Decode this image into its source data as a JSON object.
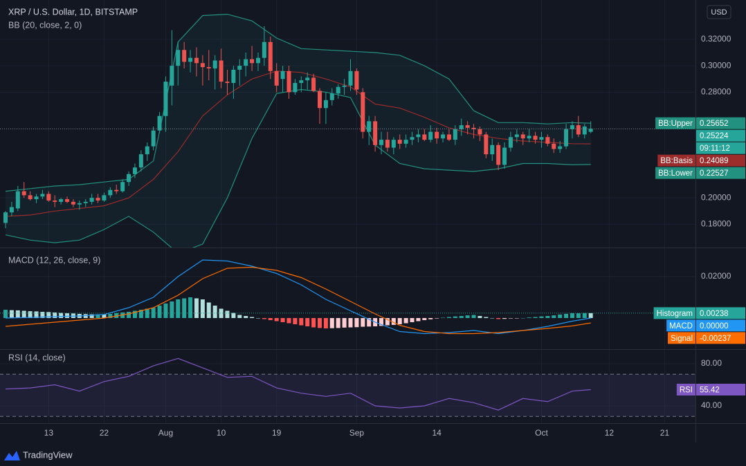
{
  "chart_data": [
    {
      "type": "candlestick",
      "title": "XRP / U.S. Dollar, 1D, BITSTAMP",
      "subtitle": "BB (20, close, 2, 0)",
      "currency": "USD",
      "countdown": "09:11:12",
      "up_color": "#26a69a",
      "down_color": "#ef5350",
      "band_fill": "rgba(38,166,154,0.07)",
      "x": [
        0,
        1,
        2,
        3,
        4,
        5,
        6,
        7,
        8,
        9,
        10,
        11,
        12,
        13,
        14,
        15,
        16,
        17,
        18,
        19,
        20,
        21,
        22,
        23,
        24,
        25,
        26,
        27,
        28,
        29,
        30,
        31,
        32,
        33,
        34,
        35,
        36,
        37,
        38,
        39,
        40,
        41,
        42,
        43,
        44,
        45,
        46,
        47,
        48,
        49,
        50,
        51,
        52,
        53,
        54,
        55,
        56,
        57,
        58,
        59,
        60,
        61,
        62,
        63,
        64,
        65,
        66,
        67,
        68,
        69,
        70,
        71,
        72,
        73,
        74,
        75,
        76,
        77,
        78,
        79,
        80,
        81,
        82,
        83,
        84,
        85,
        86,
        87,
        88,
        89,
        90,
        91,
        92,
        93,
        94,
        95
      ],
      "open": [
        0.181,
        0.189,
        0.192,
        0.205,
        0.202,
        0.199,
        0.201,
        0.203,
        0.198,
        0.197,
        0.199,
        0.197,
        0.195,
        0.196,
        0.197,
        0.2,
        0.198,
        0.202,
        0.206,
        0.205,
        0.212,
        0.218,
        0.223,
        0.233,
        0.239,
        0.251,
        0.262,
        0.285,
        0.3,
        0.312,
        0.303,
        0.306,
        0.302,
        0.299,
        0.298,
        0.304,
        0.288,
        0.287,
        0.297,
        0.3,
        0.305,
        0.302,
        0.306,
        0.318,
        0.296,
        0.29,
        0.296,
        0.28,
        0.287,
        0.289,
        0.291,
        0.281,
        0.268,
        0.274,
        0.279,
        0.284,
        0.285,
        0.296,
        0.28,
        0.25,
        0.258,
        0.24,
        0.244,
        0.238,
        0.244,
        0.241,
        0.244,
        0.246,
        0.248,
        0.244,
        0.25,
        0.245,
        0.248,
        0.244,
        0.252,
        0.255,
        0.253,
        0.252,
        0.248,
        0.233,
        0.24,
        0.225,
        0.238,
        0.246,
        0.248,
        0.245,
        0.247,
        0.244,
        0.246,
        0.241,
        0.237,
        0.239,
        0.252,
        0.255,
        0.248,
        0.25
      ],
      "high": [
        0.19,
        0.197,
        0.209,
        0.212,
        0.205,
        0.203,
        0.206,
        0.205,
        0.202,
        0.2,
        0.201,
        0.199,
        0.198,
        0.199,
        0.203,
        0.203,
        0.204,
        0.208,
        0.21,
        0.214,
        0.22,
        0.226,
        0.236,
        0.242,
        0.254,
        0.265,
        0.292,
        0.327,
        0.318,
        0.318,
        0.312,
        0.314,
        0.308,
        0.312,
        0.308,
        0.313,
        0.297,
        0.3,
        0.305,
        0.31,
        0.315,
        0.31,
        0.33,
        0.322,
        0.302,
        0.3,
        0.3,
        0.29,
        0.292,
        0.295,
        0.294,
        0.283,
        0.28,
        0.283,
        0.286,
        0.29,
        0.305,
        0.298,
        0.283,
        0.262,
        0.262,
        0.25,
        0.25,
        0.246,
        0.248,
        0.248,
        0.25,
        0.252,
        0.252,
        0.255,
        0.253,
        0.25,
        0.252,
        0.255,
        0.26,
        0.258,
        0.256,
        0.254,
        0.25,
        0.245,
        0.242,
        0.242,
        0.25,
        0.252,
        0.25,
        0.252,
        0.25,
        0.25,
        0.248,
        0.245,
        0.243,
        0.256,
        0.258,
        0.262,
        0.256,
        0.258
      ],
      "low": [
        0.177,
        0.186,
        0.19,
        0.2,
        0.198,
        0.196,
        0.199,
        0.197,
        0.193,
        0.195,
        0.196,
        0.193,
        0.191,
        0.193,
        0.195,
        0.196,
        0.197,
        0.2,
        0.203,
        0.204,
        0.209,
        0.215,
        0.22,
        0.228,
        0.236,
        0.249,
        0.25,
        0.27,
        0.285,
        0.298,
        0.295,
        0.292,
        0.285,
        0.289,
        0.282,
        0.283,
        0.278,
        0.275,
        0.285,
        0.292,
        0.296,
        0.296,
        0.3,
        0.29,
        0.28,
        0.28,
        0.275,
        0.278,
        0.28,
        0.282,
        0.28,
        0.256,
        0.256,
        0.27,
        0.275,
        0.278,
        0.281,
        0.278,
        0.245,
        0.24,
        0.235,
        0.233,
        0.235,
        0.233,
        0.237,
        0.238,
        0.24,
        0.242,
        0.243,
        0.242,
        0.241,
        0.242,
        0.243,
        0.24,
        0.247,
        0.248,
        0.245,
        0.243,
        0.23,
        0.228,
        0.221,
        0.222,
        0.235,
        0.242,
        0.24,
        0.242,
        0.241,
        0.238,
        0.239,
        0.234,
        0.234,
        0.237,
        0.245,
        0.246,
        0.245,
        0.249
      ],
      "close": [
        0.189,
        0.193,
        0.205,
        0.202,
        0.199,
        0.201,
        0.203,
        0.198,
        0.197,
        0.199,
        0.197,
        0.195,
        0.196,
        0.197,
        0.2,
        0.198,
        0.202,
        0.206,
        0.205,
        0.212,
        0.218,
        0.223,
        0.233,
        0.239,
        0.251,
        0.262,
        0.288,
        0.3,
        0.312,
        0.303,
        0.306,
        0.302,
        0.299,
        0.298,
        0.304,
        0.288,
        0.287,
        0.297,
        0.3,
        0.305,
        0.302,
        0.306,
        0.318,
        0.296,
        0.285,
        0.296,
        0.28,
        0.287,
        0.289,
        0.291,
        0.281,
        0.268,
        0.274,
        0.279,
        0.284,
        0.285,
        0.296,
        0.282,
        0.25,
        0.258,
        0.24,
        0.244,
        0.238,
        0.244,
        0.241,
        0.244,
        0.246,
        0.248,
        0.244,
        0.25,
        0.245,
        0.248,
        0.244,
        0.252,
        0.255,
        0.253,
        0.252,
        0.248,
        0.233,
        0.24,
        0.225,
        0.238,
        0.246,
        0.248,
        0.245,
        0.247,
        0.244,
        0.246,
        0.241,
        0.237,
        0.239,
        0.252,
        0.255,
        0.248,
        0.254,
        0.25224
      ],
      "series": [
        {
          "name": "BB:Upper",
          "color": "#22917f",
          "x": [
            0,
            4,
            8,
            12,
            16,
            20,
            24,
            28,
            32,
            36,
            40,
            44,
            48,
            52,
            56,
            60,
            64,
            68,
            72,
            76,
            80,
            84,
            88,
            92,
            95
          ],
          "values": [
            0.205,
            0.207,
            0.209,
            0.21,
            0.212,
            0.214,
            0.228,
            0.318,
            0.338,
            0.339,
            0.334,
            0.321,
            0.313,
            0.312,
            0.311,
            0.31,
            0.308,
            0.3,
            0.29,
            0.266,
            0.257,
            0.257,
            0.256,
            0.257,
            0.25652
          ]
        },
        {
          "name": "BB:Basis",
          "color": "#9c2b2b",
          "x": [
            0,
            4,
            8,
            12,
            16,
            20,
            24,
            28,
            32,
            36,
            40,
            44,
            48,
            52,
            56,
            60,
            64,
            68,
            72,
            76,
            80,
            84,
            88,
            92,
            95
          ],
          "values": [
            0.186,
            0.187,
            0.19,
            0.192,
            0.194,
            0.2,
            0.214,
            0.235,
            0.262,
            0.278,
            0.29,
            0.296,
            0.295,
            0.29,
            0.284,
            0.271,
            0.268,
            0.261,
            0.253,
            0.248,
            0.245,
            0.243,
            0.242,
            0.241,
            0.24089
          ]
        },
        {
          "name": "BB:Lower",
          "color": "#22917f",
          "x": [
            0,
            4,
            8,
            12,
            16,
            20,
            24,
            28,
            32,
            36,
            40,
            44,
            48,
            52,
            56,
            60,
            64,
            68,
            72,
            76,
            80,
            84,
            88,
            92,
            95
          ],
          "values": [
            0.172,
            0.168,
            0.166,
            0.168,
            0.176,
            0.186,
            0.174,
            0.158,
            0.165,
            0.2,
            0.245,
            0.279,
            0.282,
            0.28,
            0.276,
            0.24,
            0.226,
            0.222,
            0.221,
            0.22,
            0.222,
            0.226,
            0.226,
            0.225,
            0.22527
          ]
        }
      ],
      "xlim": [
        -0.9,
        112
      ],
      "xticks": [
        {
          "value": 7,
          "label": "13"
        },
        {
          "value": 16,
          "label": "22"
        },
        {
          "value": 26,
          "label": "Aug"
        },
        {
          "value": 35,
          "label": "10"
        },
        {
          "value": 44,
          "label": "19"
        },
        {
          "value": 57,
          "label": "Sep"
        },
        {
          "value": 70,
          "label": "14"
        },
        {
          "value": 87,
          "label": "Oct"
        },
        {
          "value": 98,
          "label": "12"
        },
        {
          "value": 107,
          "label": "21"
        }
      ],
      "ylim": [
        0.1624,
        0.3498
      ],
      "yticks": [
        {
          "value": 0.18,
          "label": "0.18000"
        },
        {
          "value": 0.2,
          "label": "0.20000"
        },
        {
          "value": 0.28,
          "label": "0.28000"
        },
        {
          "value": 0.3,
          "label": "0.30000"
        },
        {
          "value": 0.32,
          "label": "0.32000"
        }
      ]
    },
    {
      "type": "macd",
      "title": "MACD (12, 26, close, 9)",
      "series": [
        {
          "name": "Histogram",
          "type": "histogram",
          "color": "#26a69a",
          "colors": [
            "#26a69a",
            "#b2dfdb",
            "#ff5252",
            "#ffcdd2"
          ],
          "values": [
            0.004,
            0.0038,
            0.0037,
            0.0035,
            0.0033,
            0.0032,
            0.003,
            0.0029,
            0.0027,
            0.0025,
            0.0023,
            0.0022,
            0.002,
            0.0019,
            0.0018,
            0.0018,
            0.0017,
            0.002,
            0.0024,
            0.0027,
            0.003,
            0.0035,
            0.004,
            0.0045,
            0.005,
            0.006,
            0.007,
            0.008,
            0.009,
            0.0095,
            0.01,
            0.0095,
            0.009,
            0.0075,
            0.006,
            0.0045,
            0.0035,
            0.0025,
            0.0015,
            0.001,
            0.0005,
            0.0,
            -0.0005,
            -0.001,
            -0.0015,
            -0.002,
            -0.0025,
            -0.003,
            -0.0035,
            -0.004,
            -0.0045,
            -0.0048,
            -0.005,
            -0.0049,
            -0.0048,
            -0.0046,
            -0.0045,
            -0.0044,
            -0.0042,
            -0.0041,
            -0.004,
            -0.0038,
            -0.0035,
            -0.0033,
            -0.003,
            -0.0025,
            -0.002,
            -0.0015,
            -0.001,
            -0.0006,
            -0.0002,
            0.0002,
            0.0005,
            0.0008,
            0.001,
            0.0013,
            0.0015,
            0.001,
            0.0005,
            0.0,
            -0.0005,
            -0.0004,
            -0.0002,
            -0.0001,
            0.0,
            0.0003,
            0.0005,
            0.0008,
            0.001,
            0.0013,
            0.0017,
            0.002,
            0.0023,
            0.0023,
            0.0024,
            0.00238
          ]
        },
        {
          "name": "MACD",
          "color": "#2196f3",
          "x": [
            0,
            4,
            8,
            12,
            16,
            20,
            24,
            28,
            32,
            36,
            40,
            44,
            48,
            52,
            56,
            60,
            64,
            68,
            72,
            76,
            80,
            84,
            88,
            92,
            95
          ],
          "values": [
            0.0,
            0.0003,
            0.0007,
            0.001,
            0.0017,
            0.005,
            0.01,
            0.02,
            0.028,
            0.0275,
            0.025,
            0.0215,
            0.016,
            0.009,
            0.0035,
            -0.002,
            -0.0065,
            -0.0075,
            -0.007,
            -0.006,
            -0.0075,
            -0.006,
            -0.004,
            -0.0015,
            0
          ],
          "value_labels": [
            null,
            null,
            null,
            null,
            null,
            null,
            null,
            null,
            null,
            null,
            null,
            null,
            null,
            null,
            null,
            null,
            null,
            null,
            null,
            null,
            null,
            null,
            null,
            null,
            "0.00000"
          ]
        },
        {
          "name": "Signal",
          "color": "#ff6d00",
          "x": [
            0,
            4,
            8,
            12,
            16,
            20,
            24,
            28,
            32,
            36,
            40,
            44,
            48,
            52,
            56,
            60,
            64,
            68,
            72,
            76,
            80,
            84,
            88,
            92,
            95
          ],
          "values": [
            -0.004,
            -0.003,
            -0.002,
            -0.001,
            0.0,
            0.002,
            0.005,
            0.011,
            0.019,
            0.024,
            0.0245,
            0.023,
            0.0195,
            0.014,
            0.008,
            0.002,
            -0.0035,
            -0.0065,
            -0.0075,
            -0.0075,
            -0.007,
            -0.006,
            -0.005,
            -0.0038,
            -0.00237
          ]
        }
      ],
      "ylim": [
        -0.015,
        0.034
      ],
      "yticks": [
        {
          "value": 0.02,
          "label": "0.02000"
        }
      ]
    },
    {
      "type": "rsi",
      "title": "RSI (14, close)",
      "band": [
        30,
        70
      ],
      "band_color": "rgba(126,87,194,0.12)",
      "series": [
        {
          "name": "RSI",
          "color": "#7e57c2",
          "x": [
            0,
            4,
            8,
            12,
            16,
            20,
            24,
            28,
            32,
            36,
            40,
            44,
            48,
            52,
            56,
            60,
            64,
            68,
            72,
            76,
            80,
            84,
            88,
            92,
            95
          ],
          "values": [
            56,
            57,
            60,
            54,
            63,
            68,
            78,
            85,
            76,
            67,
            68,
            57,
            52,
            49,
            52,
            40,
            38,
            40,
            47,
            43,
            36,
            47,
            44,
            54,
            55.42
          ]
        }
      ],
      "ylim": [
        23.6,
        93.8
      ],
      "yticks": [
        {
          "value": 40,
          "label": "40.00"
        },
        {
          "value": 80,
          "label": "80.00"
        }
      ]
    }
  ],
  "footer": "TradingView"
}
